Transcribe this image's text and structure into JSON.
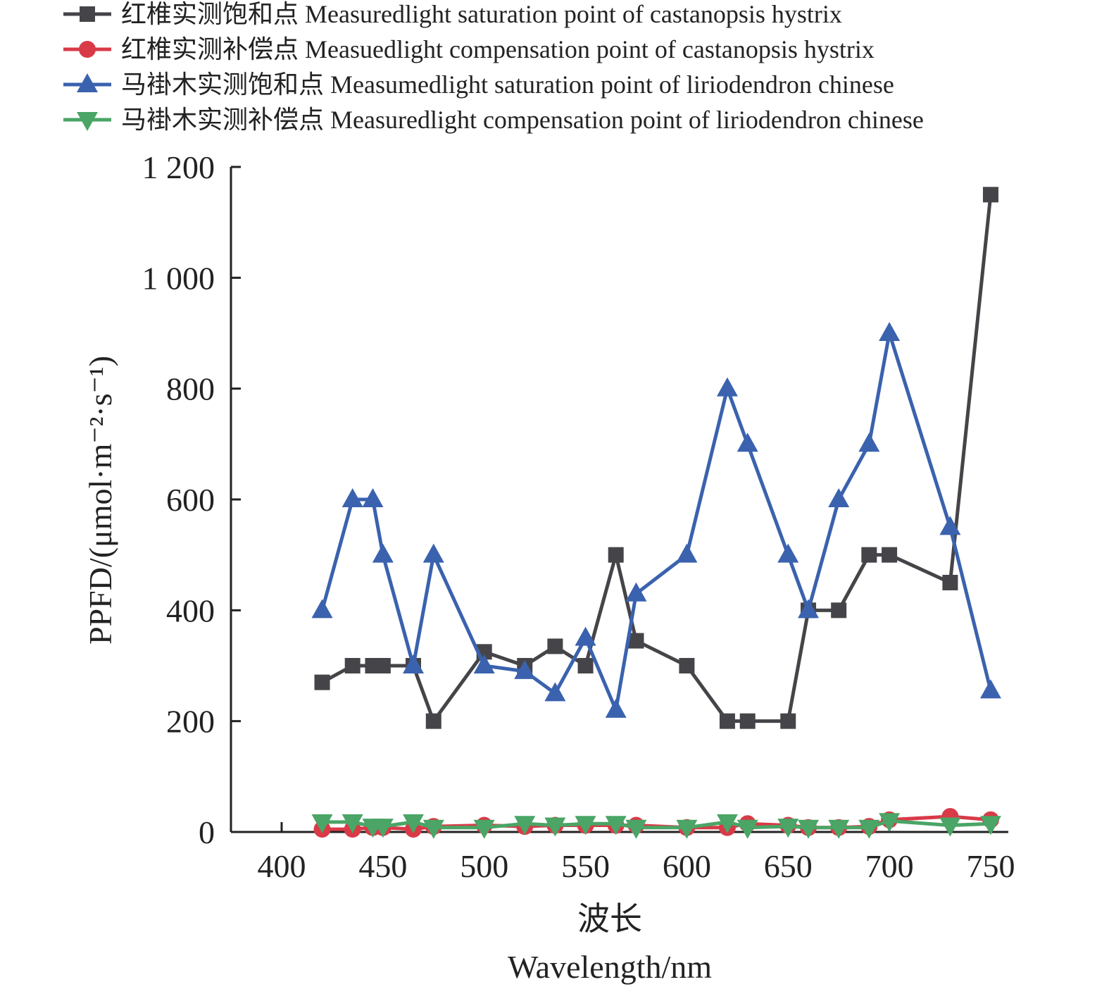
{
  "chart_data": {
    "type": "line",
    "title": "",
    "xlabel_cn": "波长",
    "xlabel": "Wavelength/nm",
    "ylabel": "PPFD/(μmol·m⁻²·s⁻¹)",
    "xlim": [
      375,
      760
    ],
    "ylim": [
      0,
      1200
    ],
    "xticks": [
      400,
      450,
      500,
      550,
      600,
      650,
      700,
      750
    ],
    "yticks": [
      0,
      200,
      400,
      600,
      800,
      1000,
      1200
    ],
    "ytick_labels": [
      "0",
      "200",
      "400",
      "600",
      "800",
      "1 000",
      "1 200"
    ],
    "legend_position": "top-left",
    "x": [
      420,
      435,
      445,
      450,
      465,
      475,
      500,
      520,
      535,
      550,
      565,
      575,
      600,
      620,
      630,
      650,
      660,
      675,
      690,
      700,
      730,
      750
    ],
    "series": [
      {
        "name": "红椎实测饱和点 Measuredlight saturation point of castanopsis hystrix",
        "color": "#454549",
        "marker": "square",
        "values": [
          270,
          300,
          300,
          300,
          300,
          200,
          325,
          300,
          335,
          300,
          500,
          345,
          300,
          200,
          200,
          200,
          400,
          400,
          500,
          500,
          450,
          1150
        ]
      },
      {
        "name": "红椎实测补偿点 Measuedlight compensation point of castanopsis hystrix",
        "color": "#d93a48",
        "marker": "circle",
        "values": [
          5,
          5,
          8,
          8,
          5,
          10,
          12,
          10,
          12,
          12,
          12,
          12,
          8,
          8,
          15,
          12,
          8,
          8,
          10,
          22,
          28,
          22
        ]
      },
      {
        "name": "马褂木实测饱和点 Measumedlight saturation point of liriodendron chinese",
        "color": "#3a62ae",
        "marker": "triangle-up",
        "values": [
          400,
          600,
          600,
          500,
          300,
          500,
          300,
          290,
          250,
          350,
          220,
          430,
          500,
          800,
          700,
          500,
          400,
          600,
          700,
          900,
          550,
          255
        ]
      },
      {
        "name": "马褂木实测补偿点 Measuredlight compensation point of liriodendron chinese",
        "color": "#4aa566",
        "marker": "triangle-down",
        "values": [
          18,
          18,
          10,
          10,
          18,
          8,
          8,
          15,
          12,
          15,
          15,
          8,
          8,
          18,
          8,
          10,
          8,
          8,
          8,
          20,
          12,
          15
        ]
      }
    ]
  }
}
